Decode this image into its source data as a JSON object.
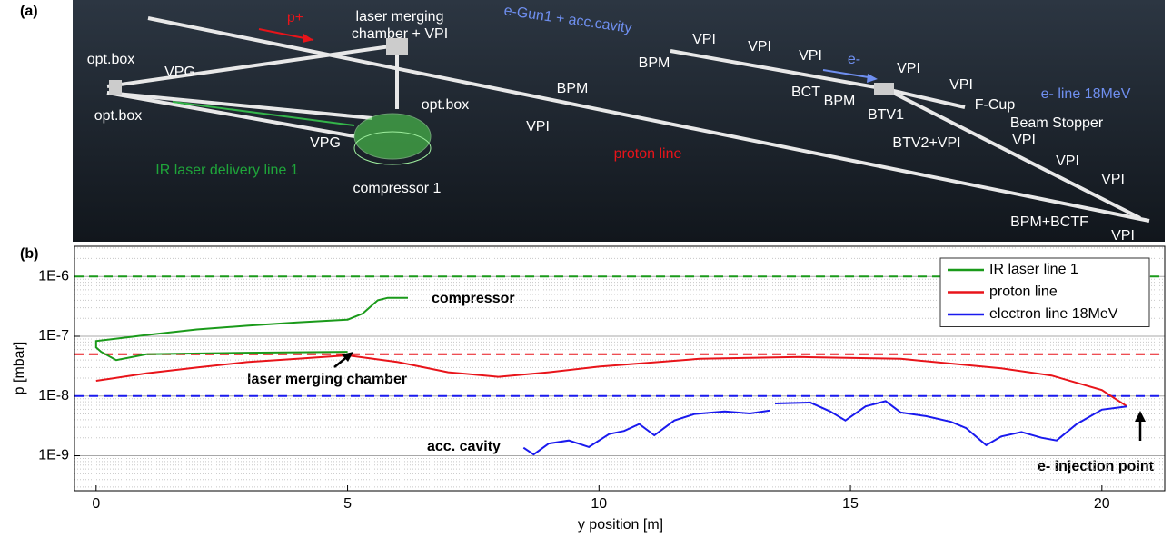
{
  "panel_a": {
    "label": "(a)",
    "labels": [
      "p+",
      "laser merging",
      "chamber + VPI",
      "e-Gun1 + acc.cavity",
      "opt.box",
      "VPG",
      "opt.box",
      "opt.box",
      "BPM",
      "VPI",
      "VPG",
      "compressor 1",
      "IR laser delivery line 1",
      "proton line",
      "VPI",
      "VPI",
      "BPM",
      "VPI",
      "e-",
      "VPI",
      "BCT",
      "BPM",
      "BTV1",
      "VPI",
      "F-Cup",
      "Beam Stopper",
      "BTV2+VPI",
      "VPI",
      "VPI",
      "VPI",
      "BPM+BCTF",
      "VPI",
      "e- line 18MeV"
    ]
  },
  "chart_data": {
    "type": "line",
    "panel_label": "(b)",
    "x_label": "y position [m]",
    "y_label": "p [mbar]",
    "xlim": [
      -0.43,
      21.25
    ],
    "xticks": [
      0,
      5,
      10,
      15,
      20
    ],
    "ylim": [
      2.6e-10,
      3.2e-06
    ],
    "log_y": true,
    "grid": true,
    "yticks": [
      {
        "value": 1e-09,
        "label": "1E-9"
      },
      {
        "value": 1e-08,
        "label": "1E-8"
      },
      {
        "value": 1e-07,
        "label": "1E-7"
      },
      {
        "value": 1e-06,
        "label": "1E-6"
      }
    ],
    "legend": "upper right",
    "reference_lines": [
      {
        "value": 1e-06,
        "color": "#1a9a1a"
      },
      {
        "value": 5e-08,
        "color": "#e8141a"
      },
      {
        "value": 1e-08,
        "color": "#1a1aee"
      }
    ],
    "annotations": [
      "compressor",
      "laser merging chamber",
      "acc. cavity",
      "e- injection point"
    ],
    "series": [
      {
        "name": "IR laser line 1",
        "color": "#1a9a1a",
        "x": [
          5,
          3,
          1,
          0.4,
          0.1,
          0,
          0,
          1,
          2,
          3,
          4,
          5,
          5.3,
          5.6,
          5.8,
          6.2
        ],
        "values": [
          5.5e-08,
          5.3e-08,
          5e-08,
          4e-08,
          5.5e-08,
          6.5e-08,
          8.3e-08,
          1.05e-07,
          1.3e-07,
          1.5e-07,
          1.7e-07,
          1.9e-07,
          2.4e-07,
          4e-07,
          4.4e-07,
          4.4e-07
        ]
      },
      {
        "name": "proton line",
        "color": "#e8141a",
        "x": [
          0,
          1,
          2,
          3,
          4,
          5,
          6,
          7,
          8,
          9,
          10,
          12,
          14,
          16,
          18,
          19,
          20,
          20.5
        ],
        "values": [
          1.8e-08,
          2.4e-08,
          3e-08,
          3.7e-08,
          4.2e-08,
          4.8e-08,
          3.7e-08,
          2.5e-08,
          2.1e-08,
          2.5e-08,
          3.1e-08,
          4.2e-08,
          4.5e-08,
          4.2e-08,
          2.9e-08,
          2.2e-08,
          1.26e-08,
          6.7e-09
        ]
      },
      {
        "name": "electron line 18MeV",
        "color": "#1a1aee",
        "x": [
          8.5,
          8.7,
          9,
          9.4,
          9.8,
          10.2,
          10.5,
          10.8,
          11.1,
          11.5,
          11.9,
          12.5,
          13,
          13.4,
          13.45,
          13.5,
          14.2,
          14.6,
          14.9,
          15.3,
          15.7,
          16,
          16.5,
          17,
          17.3,
          17.7,
          18,
          18.4,
          18.8,
          19.1,
          19.5,
          20,
          20.5
        ],
        "values": [
          1.36e-09,
          1.05e-09,
          1.6e-09,
          1.8e-09,
          1.4e-09,
          2.3e-09,
          2.6e-09,
          3.4e-09,
          2.2e-09,
          3.9e-09,
          5e-09,
          5.5e-09,
          5.1e-09,
          5.7e-09,
          null,
          7.5e-09,
          7.8e-09,
          5.5e-09,
          3.9e-09,
          6.7e-09,
          8.2e-09,
          5.3e-09,
          4.6e-09,
          3.7e-09,
          2.9e-09,
          1.5e-09,
          2.1e-09,
          2.5e-09,
          2e-09,
          1.8e-09,
          3.4e-09,
          5.9e-09,
          6.7e-09
        ]
      }
    ]
  }
}
